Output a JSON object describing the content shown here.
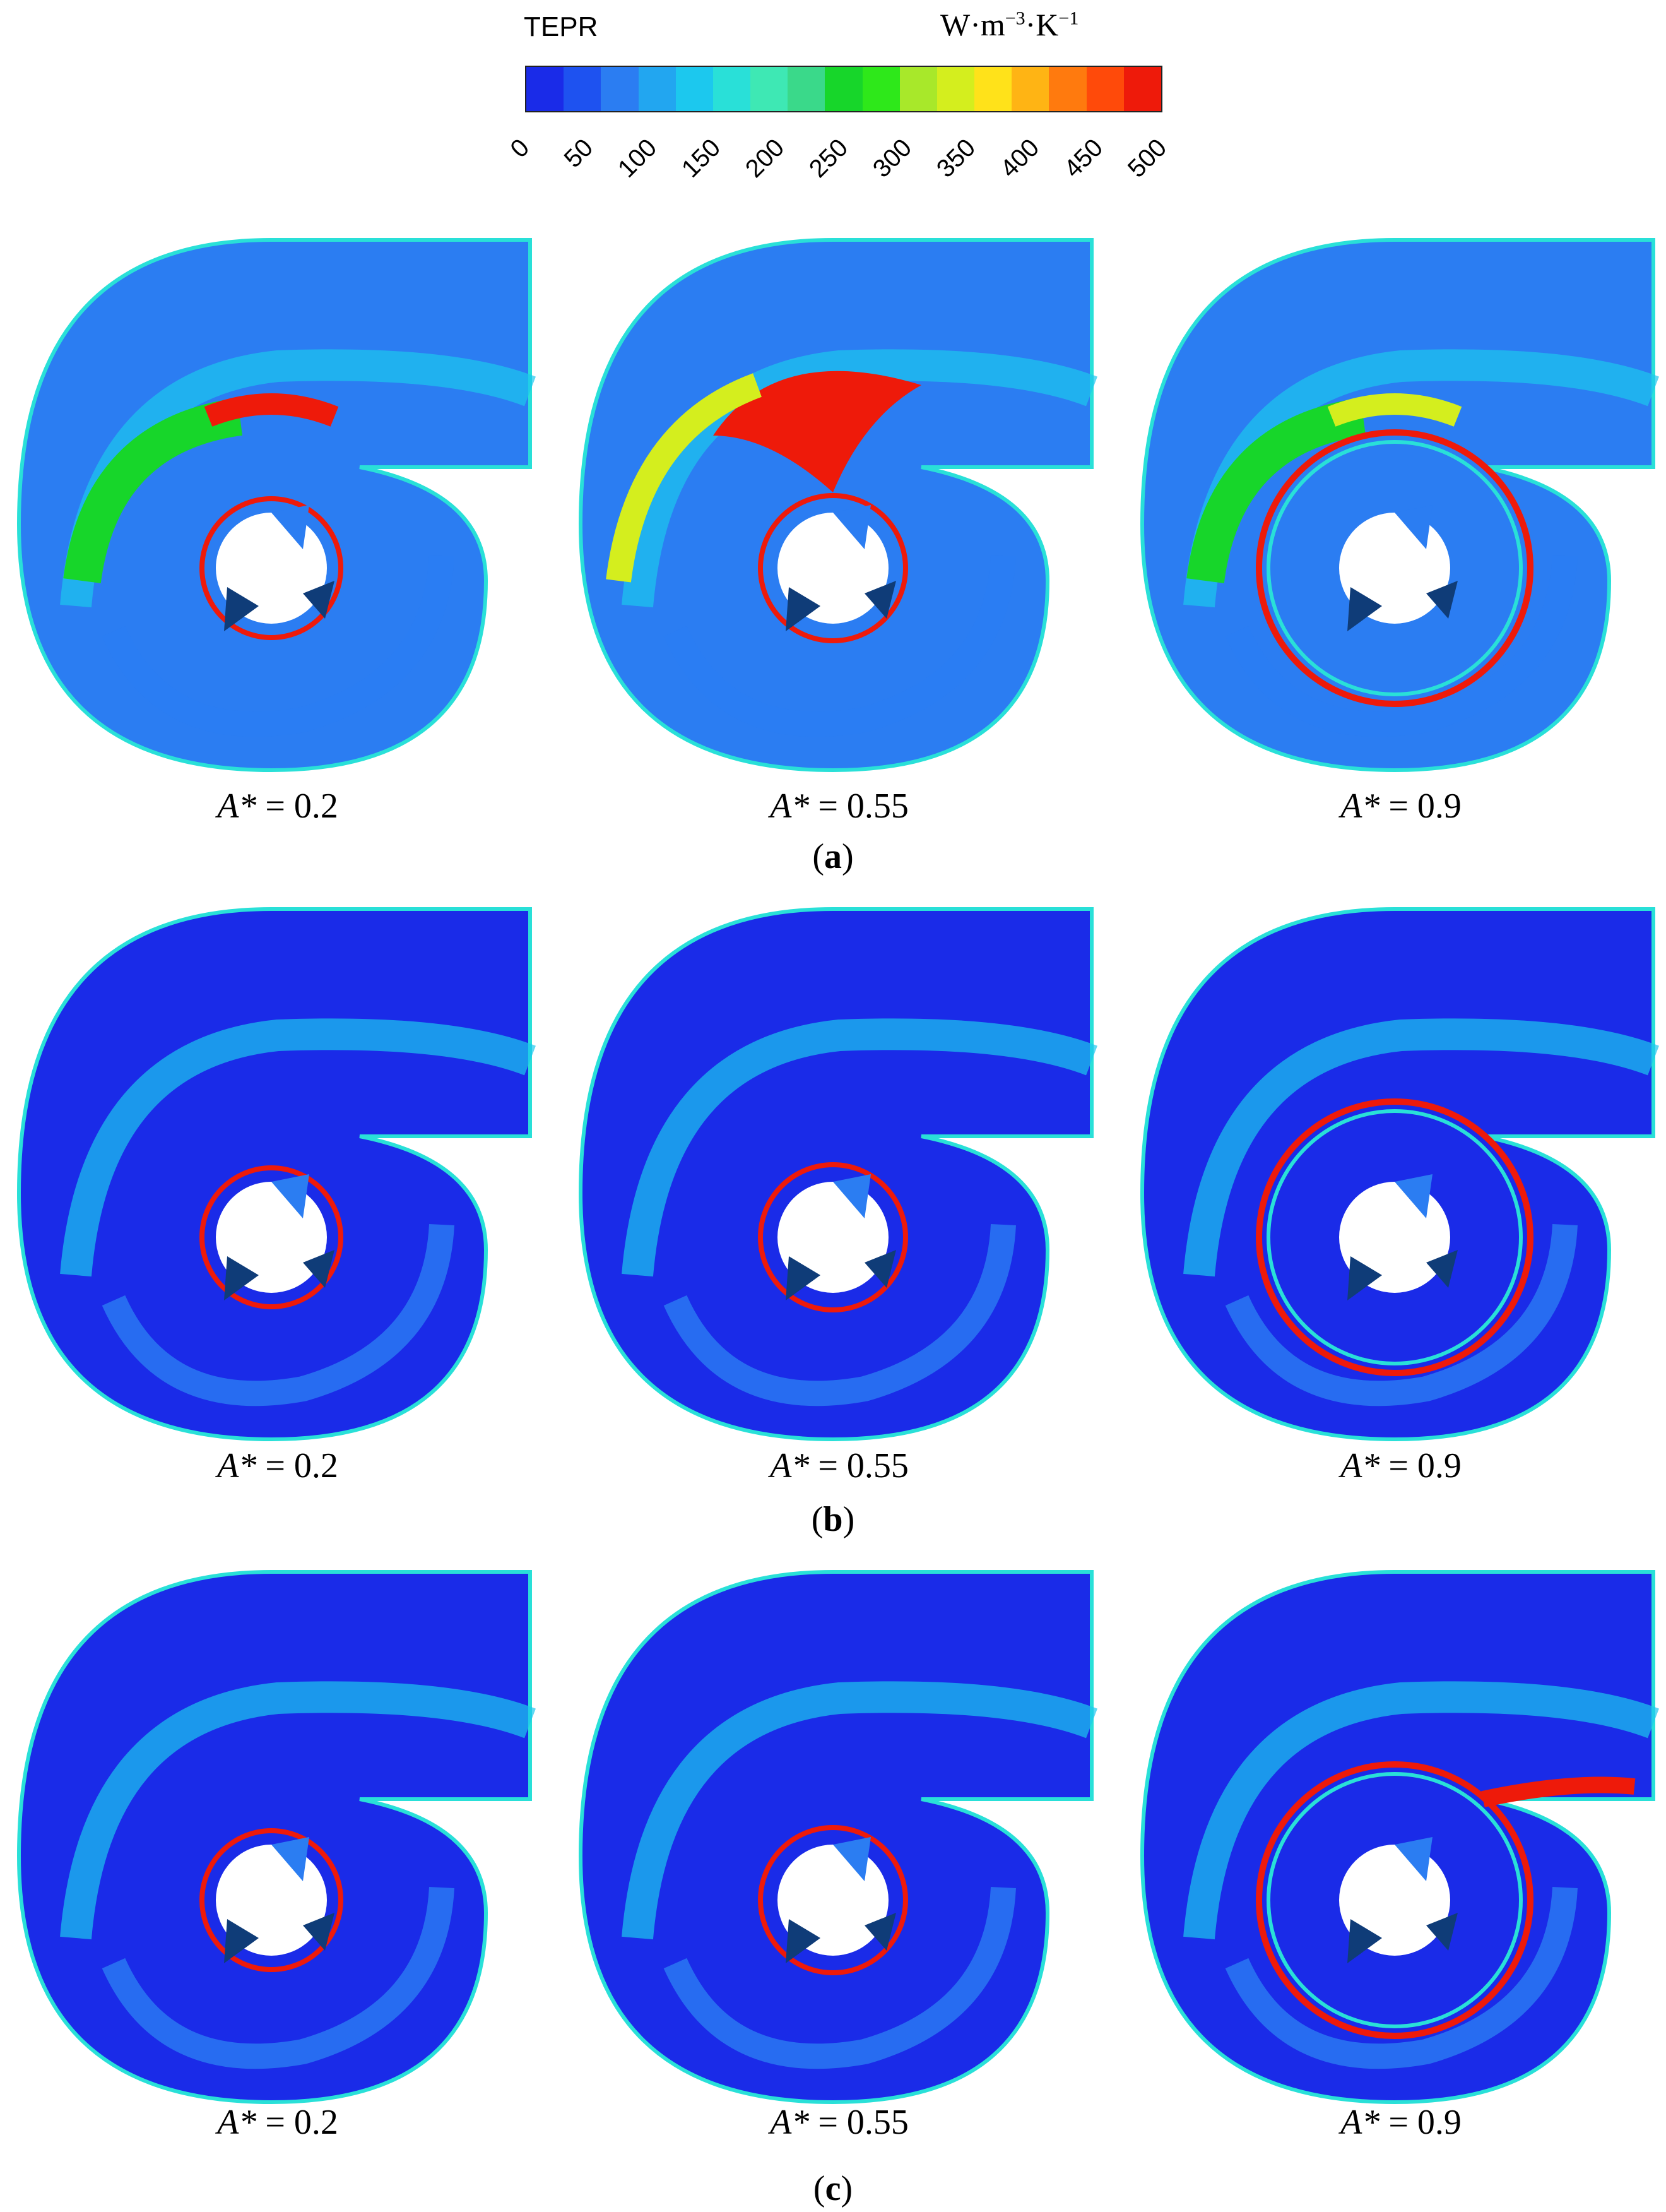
{
  "legend": {
    "variable": "TEPR",
    "unit_base": "W·m",
    "unit_exp1": "−3",
    "unit_mid": "·K",
    "unit_exp2": "−1",
    "ticks": [
      "0",
      "50",
      "100",
      "150",
      "200",
      "250",
      "300",
      "350",
      "400",
      "450",
      "500"
    ],
    "colors": [
      "#1a2be8",
      "#1e52f0",
      "#2b7df2",
      "#22a6f0",
      "#1cc8ee",
      "#29e0d8",
      "#3ee8b4",
      "#3ad98a",
      "#17d62a",
      "#2ee81a",
      "#a8e82a",
      "#d4ee1e",
      "#ffe21a",
      "#ffb414",
      "#ff7a0e",
      "#ff4a0a",
      "#ee1a0a"
    ]
  },
  "rows": [
    {
      "label": "a",
      "captions": [
        "0.2",
        "0.55",
        "0.9"
      ]
    },
    {
      "label": "b",
      "captions": [
        "0.2",
        "0.55",
        "0.9"
      ]
    },
    {
      "label": "c",
      "captions": [
        "0.2",
        "0.55",
        "0.9"
      ]
    }
  ],
  "caption_symbol": "A*",
  "caption_eq": " = "
}
